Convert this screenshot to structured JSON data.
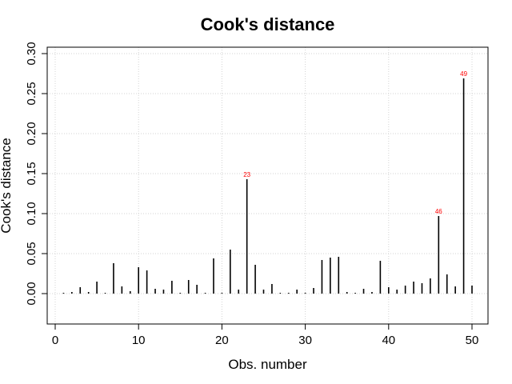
{
  "chart_data": {
    "type": "bar",
    "title": "Cook's distance",
    "xlabel": "Obs. number",
    "ylabel": "Cook's distance",
    "xlim": [
      0,
      51
    ],
    "ylim": [
      -0.04,
      0.3
    ],
    "xticks": [
      0,
      10,
      20,
      30,
      40,
      50
    ],
    "yticks": [
      "0.00",
      "0.05",
      "0.10",
      "0.15",
      "0.20",
      "0.25",
      "0.30"
    ],
    "grid": true,
    "x": [
      1,
      2,
      3,
      4,
      5,
      6,
      7,
      8,
      9,
      10,
      11,
      12,
      13,
      14,
      15,
      16,
      17,
      18,
      19,
      20,
      21,
      22,
      23,
      24,
      25,
      26,
      27,
      28,
      29,
      30,
      31,
      32,
      33,
      34,
      35,
      36,
      37,
      38,
      39,
      40,
      41,
      42,
      43,
      44,
      45,
      46,
      47,
      48,
      49,
      50
    ],
    "values": [
      0.001,
      0.002,
      0.008,
      0.002,
      0.015,
      0.001,
      0.038,
      0.009,
      0.003,
      0.033,
      0.029,
      0.006,
      0.005,
      0.016,
      0.001,
      0.017,
      0.011,
      0.001,
      0.044,
      0.001,
      0.055,
      0.005,
      0.143,
      0.036,
      0.005,
      0.012,
      0.001,
      0.001,
      0.005,
      0.001,
      0.007,
      0.042,
      0.045,
      0.046,
      0.002,
      0.001,
      0.006,
      0.002,
      0.041,
      0.008,
      0.005,
      0.01,
      0.015,
      0.013,
      0.019,
      0.097,
      0.024,
      0.009,
      0.269,
      0.01
    ],
    "labels": [
      {
        "obs": 23,
        "text": "23"
      },
      {
        "obs": 46,
        "text": "46"
      },
      {
        "obs": 49,
        "text": "49"
      }
    ],
    "label_color": "#ff0000",
    "bar_color": "#000000",
    "grid_color": "#d3d3d3"
  }
}
